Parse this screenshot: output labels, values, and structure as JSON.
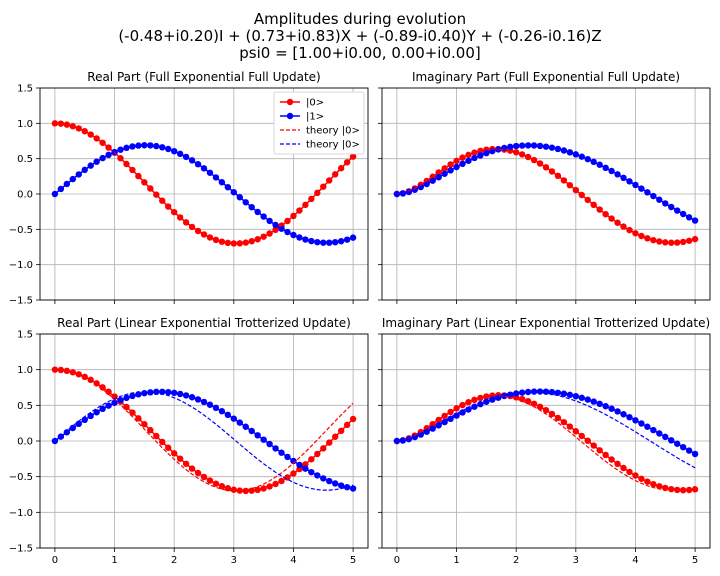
{
  "figure": {
    "title_lines": [
      "Amplitudes during evolution",
      "(-0.48+i0.20)I + (0.73+i0.83)X + (-0.89-i0.40)Y + (-0.26-i0.16)Z",
      "psi0 = [1.00+i0.00, 0.00+i0.00]"
    ]
  },
  "colors": {
    "state0": "#ff0000",
    "state1": "#0000ff",
    "grid": "#b0b0b0"
  },
  "chart_data": [
    {
      "type": "line",
      "title": "Real Part (Full Exponential Full Update)",
      "xlim": [
        -0.25,
        5.25
      ],
      "ylim": [
        -1.5,
        1.5
      ],
      "xticks": [
        0,
        1,
        2,
        3,
        4,
        5
      ],
      "yticks": [
        -1.5,
        -1.0,
        -0.5,
        0.0,
        0.5,
        1.0,
        1.5
      ],
      "show_xtick_labels": false,
      "show_ytick_labels": true,
      "grid": true,
      "legend": {
        "placement": "top-right",
        "entries": [
          "|0>",
          "|1>",
          "theory |0>",
          "theory |0>"
        ]
      },
      "series": [
        {
          "name": "|0>",
          "style": "markers",
          "color": "state0",
          "kind": "cos",
          "A": 0.7,
          "w": 1.035,
          "c": 0.3,
          "start": 1.0
        },
        {
          "name": "|1>",
          "style": "markers",
          "color": "state1",
          "kind": "sin",
          "A": 0.69,
          "w": 1.035,
          "c": 0.0
        },
        {
          "name": "theory |0>",
          "style": "dashed",
          "color": "state0",
          "kind": "cos",
          "A": 0.7,
          "w": 1.035,
          "c": 0.3,
          "start": 1.0
        },
        {
          "name": "theory |0>",
          "style": "dashed",
          "color": "state1",
          "kind": "sin",
          "A": 0.69,
          "w": 1.035,
          "c": 0.0
        }
      ]
    },
    {
      "type": "line",
      "title": "Imaginary Part (Full Exponential Full Update)",
      "xlim": [
        -0.25,
        5.25
      ],
      "ylim": [
        -1.5,
        1.5
      ],
      "xticks": [
        0,
        1,
        2,
        3,
        4,
        5
      ],
      "yticks": [
        -1.5,
        -1.0,
        -0.5,
        0.0,
        0.5,
        1.0,
        1.5
      ],
      "show_xtick_labels": false,
      "show_ytick_labels": false,
      "grid": true,
      "series": [
        {
          "name": "|0>",
          "style": "markers",
          "color": "state0",
          "kind": "sin2",
          "A": 0.69,
          "w": 1.02,
          "c": 0.0
        },
        {
          "name": "|1>",
          "style": "markers",
          "color": "state1",
          "kind": "sin2",
          "A": 0.71,
          "w": 0.74,
          "c": 0.0
        },
        {
          "name": "theory |0>",
          "style": "dashed",
          "color": "state0",
          "kind": "sin2",
          "A": 0.69,
          "w": 1.02,
          "c": 0.0
        },
        {
          "name": "theory |0>",
          "style": "dashed",
          "color": "state1",
          "kind": "sin2",
          "A": 0.71,
          "w": 0.74,
          "c": 0.0
        }
      ]
    },
    {
      "type": "line",
      "title": "Real Part (Linear Exponential Trotterized Update)",
      "xlim": [
        -0.25,
        5.25
      ],
      "ylim": [
        -1.5,
        1.5
      ],
      "xticks": [
        0,
        1,
        2,
        3,
        4,
        5
      ],
      "yticks": [
        -1.5,
        -1.0,
        -0.5,
        0.0,
        0.5,
        1.0,
        1.5
      ],
      "show_xtick_labels": true,
      "show_ytick_labels": true,
      "grid": true,
      "series": [
        {
          "name": "|0>",
          "style": "markers",
          "color": "state0",
          "kind": "cos",
          "A": 0.7,
          "w": 0.98,
          "c": 0.3,
          "start": 1.0
        },
        {
          "name": "|1>",
          "style": "markers",
          "color": "state1",
          "kind": "sin",
          "A": 0.7,
          "w": 0.89,
          "c": 0.0
        },
        {
          "name": "theory |0>",
          "style": "dashed",
          "color": "state0",
          "kind": "cos",
          "A": 0.7,
          "w": 1.035,
          "c": 0.3,
          "start": 1.0
        },
        {
          "name": "theory |0>",
          "style": "dashed",
          "color": "state1",
          "kind": "sin",
          "A": 0.69,
          "w": 1.035,
          "c": 0.0
        }
      ]
    },
    {
      "type": "line",
      "title": "Imaginary Part (Linear Exponential Trotterized Update)",
      "xlim": [
        -0.25,
        5.25
      ],
      "ylim": [
        -1.5,
        1.5
      ],
      "xticks": [
        0,
        1,
        2,
        3,
        4,
        5
      ],
      "yticks": [
        -1.5,
        -1.0,
        -0.5,
        0.0,
        0.5,
        1.0,
        1.5
      ],
      "show_xtick_labels": true,
      "show_ytick_labels": false,
      "grid": true,
      "series": [
        {
          "name": "|0>",
          "style": "markers",
          "color": "state0",
          "kind": "sin2",
          "A": 0.69,
          "w": 0.98,
          "c": 0.0
        },
        {
          "name": "|1>",
          "style": "markers",
          "color": "state1",
          "kind": "sin2",
          "A": 0.71,
          "w": 0.68,
          "c": 0.0
        },
        {
          "name": "theory |0>",
          "style": "dashed",
          "color": "state0",
          "kind": "sin2",
          "A": 0.69,
          "w": 1.02,
          "c": 0.0
        },
        {
          "name": "theory |0>",
          "style": "dashed",
          "color": "state1",
          "kind": "sin2",
          "A": 0.71,
          "w": 0.74,
          "c": 0.0
        }
      ]
    }
  ]
}
